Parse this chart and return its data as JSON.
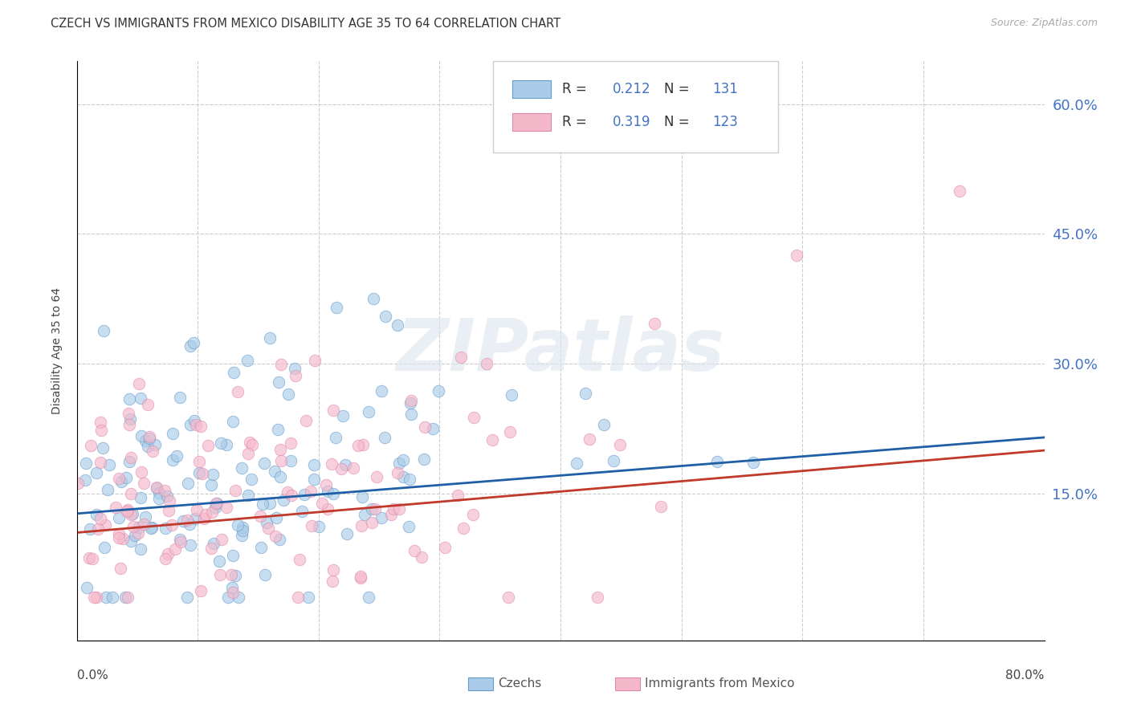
{
  "title": "CZECH VS IMMIGRANTS FROM MEXICO DISABILITY AGE 35 TO 64 CORRELATION CHART",
  "source": "Source: ZipAtlas.com",
  "ylabel": "Disability Age 35 to 64",
  "blue_R": "0.212",
  "blue_N": "131",
  "pink_R": "0.319",
  "pink_N": "123",
  "blue_scatter_color": "#aacce8",
  "blue_edge_color": "#6699cc",
  "pink_scatter_color": "#f5b8cb",
  "pink_edge_color": "#dd88aa",
  "blue_line_color": "#1f5fa6",
  "pink_line_color": "#c0392b",
  "right_tick_color": "#4472c4",
  "legend_label_color": "#333333",
  "legend_value_color_blue": "#4472c4",
  "legend_value_color_pink": "#4472c4",
  "grid_color": "#cccccc",
  "background_color": "#ffffff",
  "watermark_color": "#dde5f0",
  "xlim": [
    0.0,
    0.8
  ],
  "ylim": [
    -0.02,
    0.65
  ],
  "yticks": [
    0.15,
    0.3,
    0.45,
    0.6
  ],
  "xticks": [
    0.0,
    0.1,
    0.2,
    0.3,
    0.4,
    0.5,
    0.6,
    0.7,
    0.8
  ],
  "blue_corr": 0.212,
  "blue_n": 131,
  "pink_corr": 0.319,
  "pink_n": 123,
  "trend_blue_start_y": 0.127,
  "trend_blue_end_y": 0.215,
  "trend_pink_start_y": 0.105,
  "trend_pink_end_y": 0.2
}
